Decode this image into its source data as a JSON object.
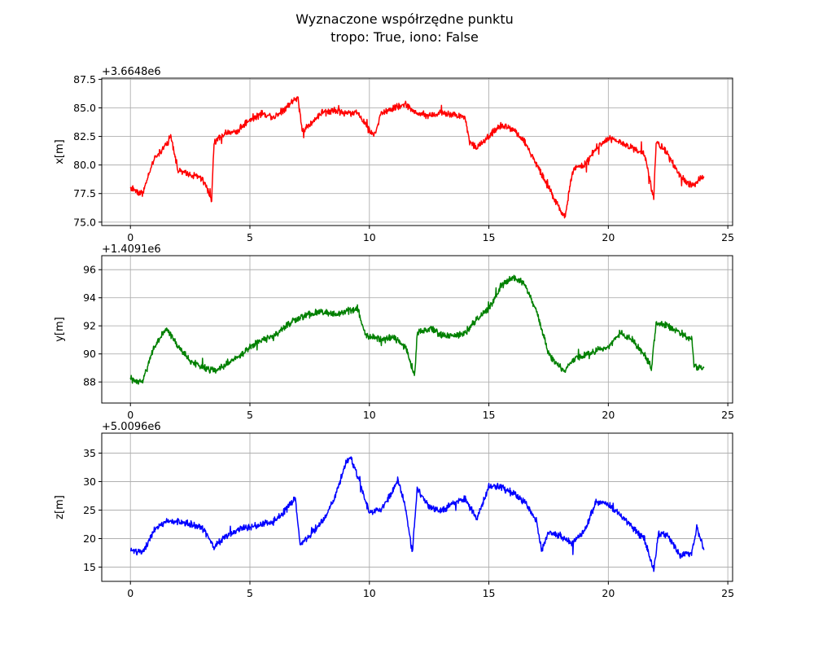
{
  "chart_data": {
    "title_line1": "Wyznaczone współrzędne punktu",
    "title_line2": "tropo: True, iono: False",
    "panels": [
      {
        "type": "line",
        "ylabel": "x[m]",
        "offset_text": "+3.6648e6",
        "color": "#ff0000",
        "xlim": [
          -1.2,
          25.2
        ],
        "ylim": [
          74.7,
          87.6
        ],
        "xticks": [
          0,
          5,
          10,
          15,
          20,
          25
        ],
        "yticks": [
          75.0,
          77.5,
          80.0,
          82.5,
          85.0,
          87.5
        ],
        "ytick_labels": [
          "75.0",
          "77.5",
          "80.0",
          "82.5",
          "85.0",
          "87.5"
        ],
        "grid": true,
        "series": {
          "x": [
            0,
            0.5,
            1,
            1.5,
            1.7,
            2,
            2.5,
            3,
            3.4,
            3.5,
            4,
            4.5,
            5,
            5.5,
            6,
            6.5,
            7,
            7.2,
            7.5,
            8,
            8.5,
            9,
            9.5,
            10,
            10.2,
            10.5,
            11,
            11.5,
            12,
            12.5,
            13,
            13.5,
            14,
            14.2,
            14.5,
            15,
            15.5,
            16,
            16.5,
            17,
            17.5,
            18,
            18.2,
            18.5,
            19,
            19.5,
            20,
            20.5,
            21,
            21.5,
            21.9,
            22,
            22.5,
            23,
            23.5,
            24
          ],
          "y": [
            78.0,
            77.5,
            80.5,
            81.8,
            82.5,
            79.5,
            79.2,
            78.8,
            77.0,
            82.0,
            82.8,
            83.0,
            84.0,
            84.5,
            84.2,
            85.0,
            86.0,
            83.0,
            83.5,
            84.6,
            84.8,
            84.5,
            84.6,
            83.0,
            82.5,
            84.5,
            85.0,
            85.3,
            84.5,
            84.3,
            84.6,
            84.4,
            84.2,
            82.0,
            81.5,
            82.5,
            83.5,
            83.2,
            82.0,
            80.0,
            78.0,
            76.0,
            75.5,
            79.5,
            80.0,
            81.5,
            82.3,
            82.0,
            81.5,
            81.0,
            77.0,
            82.0,
            81.0,
            79.0,
            78.2,
            79.0
          ]
        }
      },
      {
        "type": "line",
        "ylabel": "y[m]",
        "offset_text": "+1.4091e6",
        "color": "#008000",
        "xlim": [
          -1.2,
          25.2
        ],
        "ylim": [
          86.5,
          97.0
        ],
        "xticks": [
          0,
          5,
          10,
          15,
          20,
          25
        ],
        "yticks": [
          88,
          90,
          92,
          94,
          96
        ],
        "ytick_labels": [
          "88",
          "90",
          "92",
          "94",
          "96"
        ],
        "grid": true,
        "series": {
          "x": [
            0,
            0.5,
            1,
            1.5,
            2,
            2.5,
            3,
            3.5,
            4,
            4.5,
            5,
            5.5,
            6,
            6.5,
            7,
            7.5,
            8,
            8.5,
            9,
            9.5,
            9.8,
            10,
            10.5,
            11,
            11.5,
            11.9,
            12,
            12.5,
            13,
            13.5,
            14,
            14.5,
            15,
            15.5,
            16,
            16.5,
            17,
            17.5,
            18,
            18.2,
            18.5,
            19,
            19.5,
            20,
            20.5,
            21,
            21.5,
            21.8,
            22,
            22.5,
            23,
            23.5,
            23.6,
            24
          ],
          "y": [
            88.2,
            88.0,
            90.5,
            91.8,
            90.5,
            89.5,
            89.0,
            88.8,
            89.2,
            89.8,
            90.5,
            91.0,
            91.2,
            92.0,
            92.5,
            92.8,
            93.0,
            92.8,
            93.0,
            93.3,
            91.5,
            91.2,
            91.0,
            91.2,
            90.5,
            88.5,
            91.5,
            91.8,
            91.4,
            91.2,
            91.5,
            92.5,
            93.2,
            94.8,
            95.5,
            95.0,
            93.0,
            90.0,
            89.0,
            88.8,
            89.5,
            90.0,
            90.2,
            90.5,
            91.5,
            91.0,
            90.0,
            89.0,
            92.2,
            92.0,
            91.5,
            91.0,
            89.0,
            89.0
          ]
        }
      },
      {
        "type": "line",
        "ylabel": "z[m]",
        "offset_text": "+5.0096e6",
        "color": "#0000ff",
        "xlim": [
          -1.2,
          25.2
        ],
        "ylim": [
          12.5,
          38.5
        ],
        "xticks": [
          0,
          5,
          10,
          15,
          20,
          25
        ],
        "yticks": [
          15,
          20,
          25,
          30,
          35
        ],
        "ytick_labels": [
          "15",
          "20",
          "25",
          "30",
          "35"
        ],
        "grid": true,
        "series": {
          "x": [
            0,
            0.5,
            1,
            1.5,
            2,
            2.5,
            3,
            3.5,
            4,
            4.5,
            5,
            5.5,
            6,
            6.5,
            6.9,
            7.1,
            7.5,
            8,
            8.5,
            9,
            9.2,
            9.5,
            10,
            10.5,
            11,
            11.2,
            11.5,
            11.8,
            12,
            12.5,
            13,
            13.5,
            14,
            14.5,
            15,
            15.5,
            16,
            16.5,
            17,
            17.2,
            17.5,
            18,
            18.5,
            19,
            19.5,
            20,
            20.5,
            21,
            21.5,
            21.9,
            22.1,
            22.5,
            23,
            23.5,
            23.7,
            24
          ],
          "y": [
            18.0,
            17.5,
            21.5,
            23.0,
            23.0,
            22.5,
            22.0,
            18.5,
            20.5,
            21.5,
            22.0,
            22.5,
            23.0,
            25.0,
            27.0,
            19.0,
            20.5,
            23.0,
            26.5,
            33.0,
            34.5,
            31.0,
            24.5,
            25.0,
            28.5,
            30.5,
            25.5,
            17.5,
            29.0,
            25.5,
            25.0,
            26.0,
            27.0,
            23.5,
            29.0,
            29.0,
            28.0,
            26.5,
            23.0,
            18.0,
            21.0,
            20.5,
            19.0,
            21.5,
            26.5,
            26.0,
            24.0,
            22.0,
            20.0,
            14.5,
            21.0,
            20.5,
            17.0,
            17.5,
            22.0,
            18.0
          ]
        }
      }
    ]
  }
}
